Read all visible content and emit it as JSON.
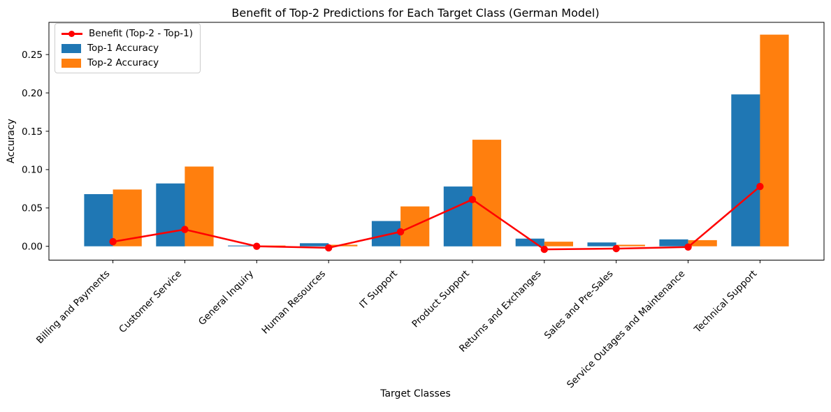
{
  "chart_data": {
    "type": "bar",
    "title": "Benefit of Top-2 Predictions for Each Target Class (German Model)",
    "xlabel": "Target Classes",
    "ylabel": "Accuracy",
    "categories": [
      "Billing and Payments",
      "Customer Service",
      "General Inquiry",
      "Human Resources",
      "IT Support",
      "Product Support",
      "Returns and Exchanges",
      "Sales and Pre-Sales",
      "Service Outages and Maintenance",
      "Technical Support"
    ],
    "series": [
      {
        "name": "Top-1 Accuracy",
        "type": "bar",
        "color": "#1f77b4",
        "values": [
          0.068,
          0.082,
          0.001,
          0.004,
          0.033,
          0.078,
          0.01,
          0.005,
          0.009,
          0.198
        ]
      },
      {
        "name": "Top-2 Accuracy",
        "type": "bar",
        "color": "#ff7f0e",
        "values": [
          0.074,
          0.104,
          0.001,
          0.002,
          0.052,
          0.139,
          0.006,
          0.002,
          0.008,
          0.276
        ]
      },
      {
        "name": "Benefit (Top-2 - Top-1)",
        "type": "line",
        "color": "#ff0000",
        "values": [
          0.006,
          0.022,
          0.0,
          -0.002,
          0.019,
          0.061,
          -0.004,
          -0.003,
          -0.001,
          0.078
        ]
      }
    ],
    "yticks": {
      "values": [
        0.0,
        0.05,
        0.1,
        0.15,
        0.2,
        0.25
      ],
      "labels": [
        "0.00",
        "0.05",
        "0.10",
        "0.15",
        "0.20",
        "0.25"
      ]
    },
    "ylim": [
      -0.018,
      0.292
    ],
    "grid": false,
    "legend_position": "upper left"
  },
  "legend": {
    "items": [
      {
        "label": "Benefit (Top-2 - Top-1)",
        "marker": "line-dot",
        "color": "#ff0000"
      },
      {
        "label": "Top-1 Accuracy",
        "marker": "square",
        "color": "#1f77b4"
      },
      {
        "label": "Top-2 Accuracy",
        "marker": "square",
        "color": "#ff7f0e"
      }
    ]
  }
}
